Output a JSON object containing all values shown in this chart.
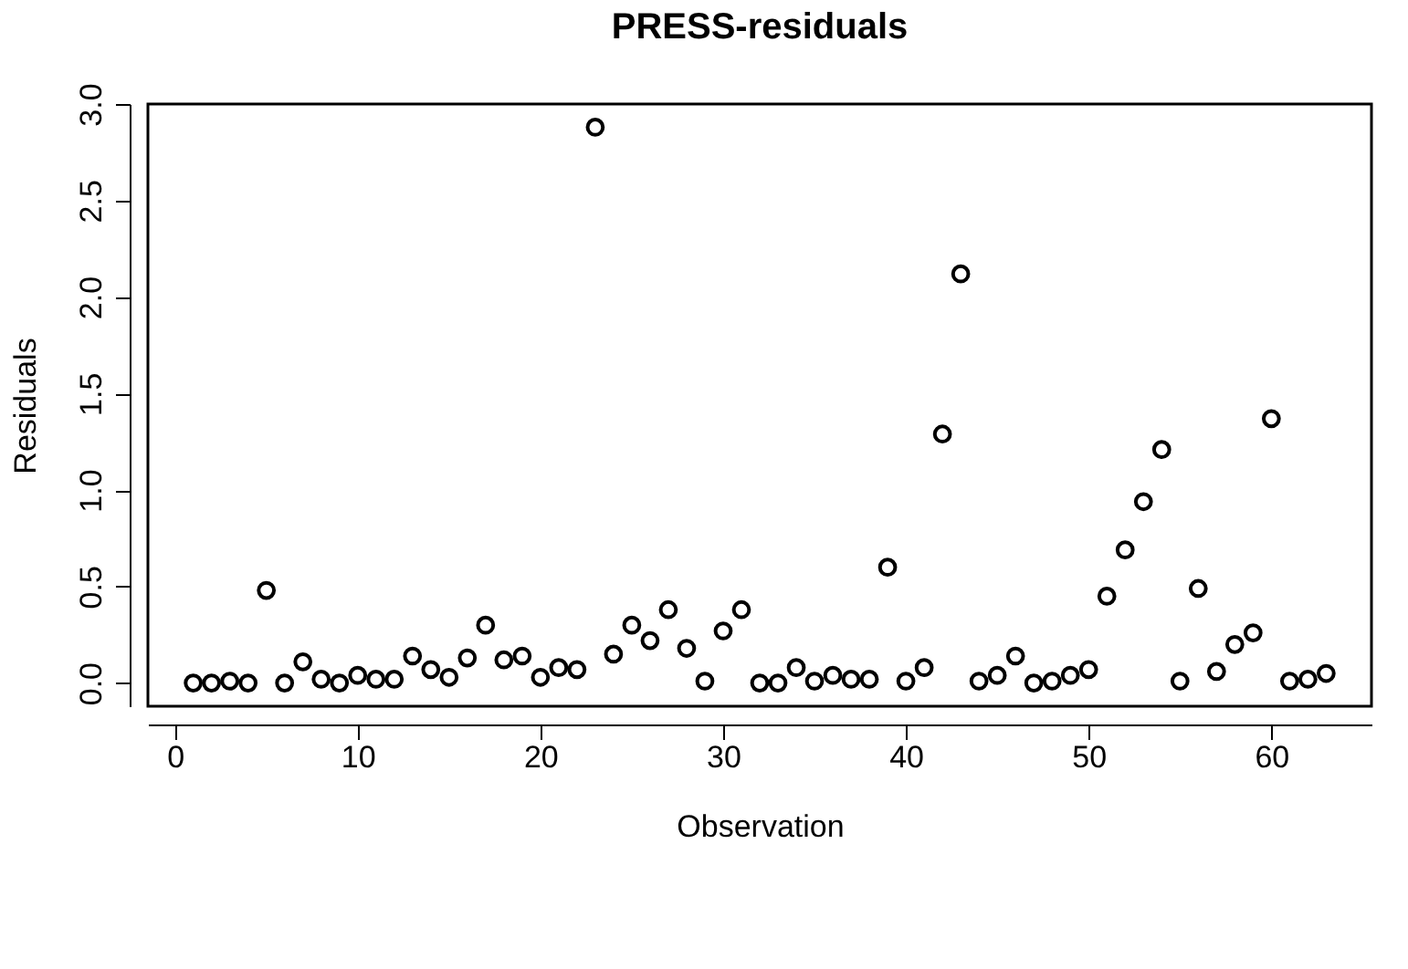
{
  "chart_data": {
    "type": "scatter",
    "title": "PRESS-residuals",
    "xlabel": "Observation",
    "ylabel": "Residuals",
    "x": [
      1,
      2,
      3,
      4,
      5,
      6,
      7,
      8,
      9,
      10,
      11,
      12,
      13,
      14,
      15,
      16,
      17,
      18,
      19,
      20,
      21,
      22,
      23,
      24,
      25,
      26,
      27,
      28,
      29,
      30,
      31,
      32,
      33,
      34,
      35,
      36,
      37,
      38,
      39,
      40,
      41,
      42,
      43,
      44,
      45,
      46,
      47,
      48,
      49,
      50,
      51,
      52,
      53,
      54,
      55,
      56,
      57,
      58,
      59,
      60,
      61,
      62,
      63
    ],
    "series": [
      {
        "color": "#000000",
        "values": [
          0.0,
          0.0,
          0.01,
          0.0,
          0.48,
          0.0,
          0.11,
          0.02,
          0.0,
          0.04,
          0.02,
          0.02,
          0.14,
          0.07,
          0.03,
          0.13,
          0.3,
          0.12,
          0.14,
          0.03,
          0.08,
          0.07,
          2.88,
          0.15,
          0.3,
          0.22,
          0.38,
          0.18,
          0.01,
          0.27,
          0.38,
          0.0,
          0.0,
          0.08,
          0.01,
          0.04,
          0.02,
          0.02,
          0.6,
          0.01,
          0.08,
          1.29,
          2.12,
          0.01,
          0.04,
          0.14,
          0.0,
          0.01,
          0.04,
          0.07,
          0.45,
          0.69,
          0.94,
          1.21,
          0.01,
          0.49,
          0.06,
          0.2,
          0.26,
          1.37,
          0.01,
          0.02,
          0.05
        ]
      }
    ],
    "xlim": [
      -1.48,
      65.48
    ],
    "ylim": [
      -0.12,
      3.0
    ],
    "xticks": [
      0,
      10,
      20,
      30,
      40,
      50,
      60
    ],
    "yticks": [
      {
        "value": 0,
        "label": "0.0"
      },
      0.5,
      {
        "value": 1,
        "label": "1.0"
      },
      1.5,
      {
        "value": 2,
        "label": "2.0"
      },
      2.5,
      {
        "value": 3,
        "label": "3.0"
      }
    ],
    "marker": "circle",
    "grid": false
  }
}
